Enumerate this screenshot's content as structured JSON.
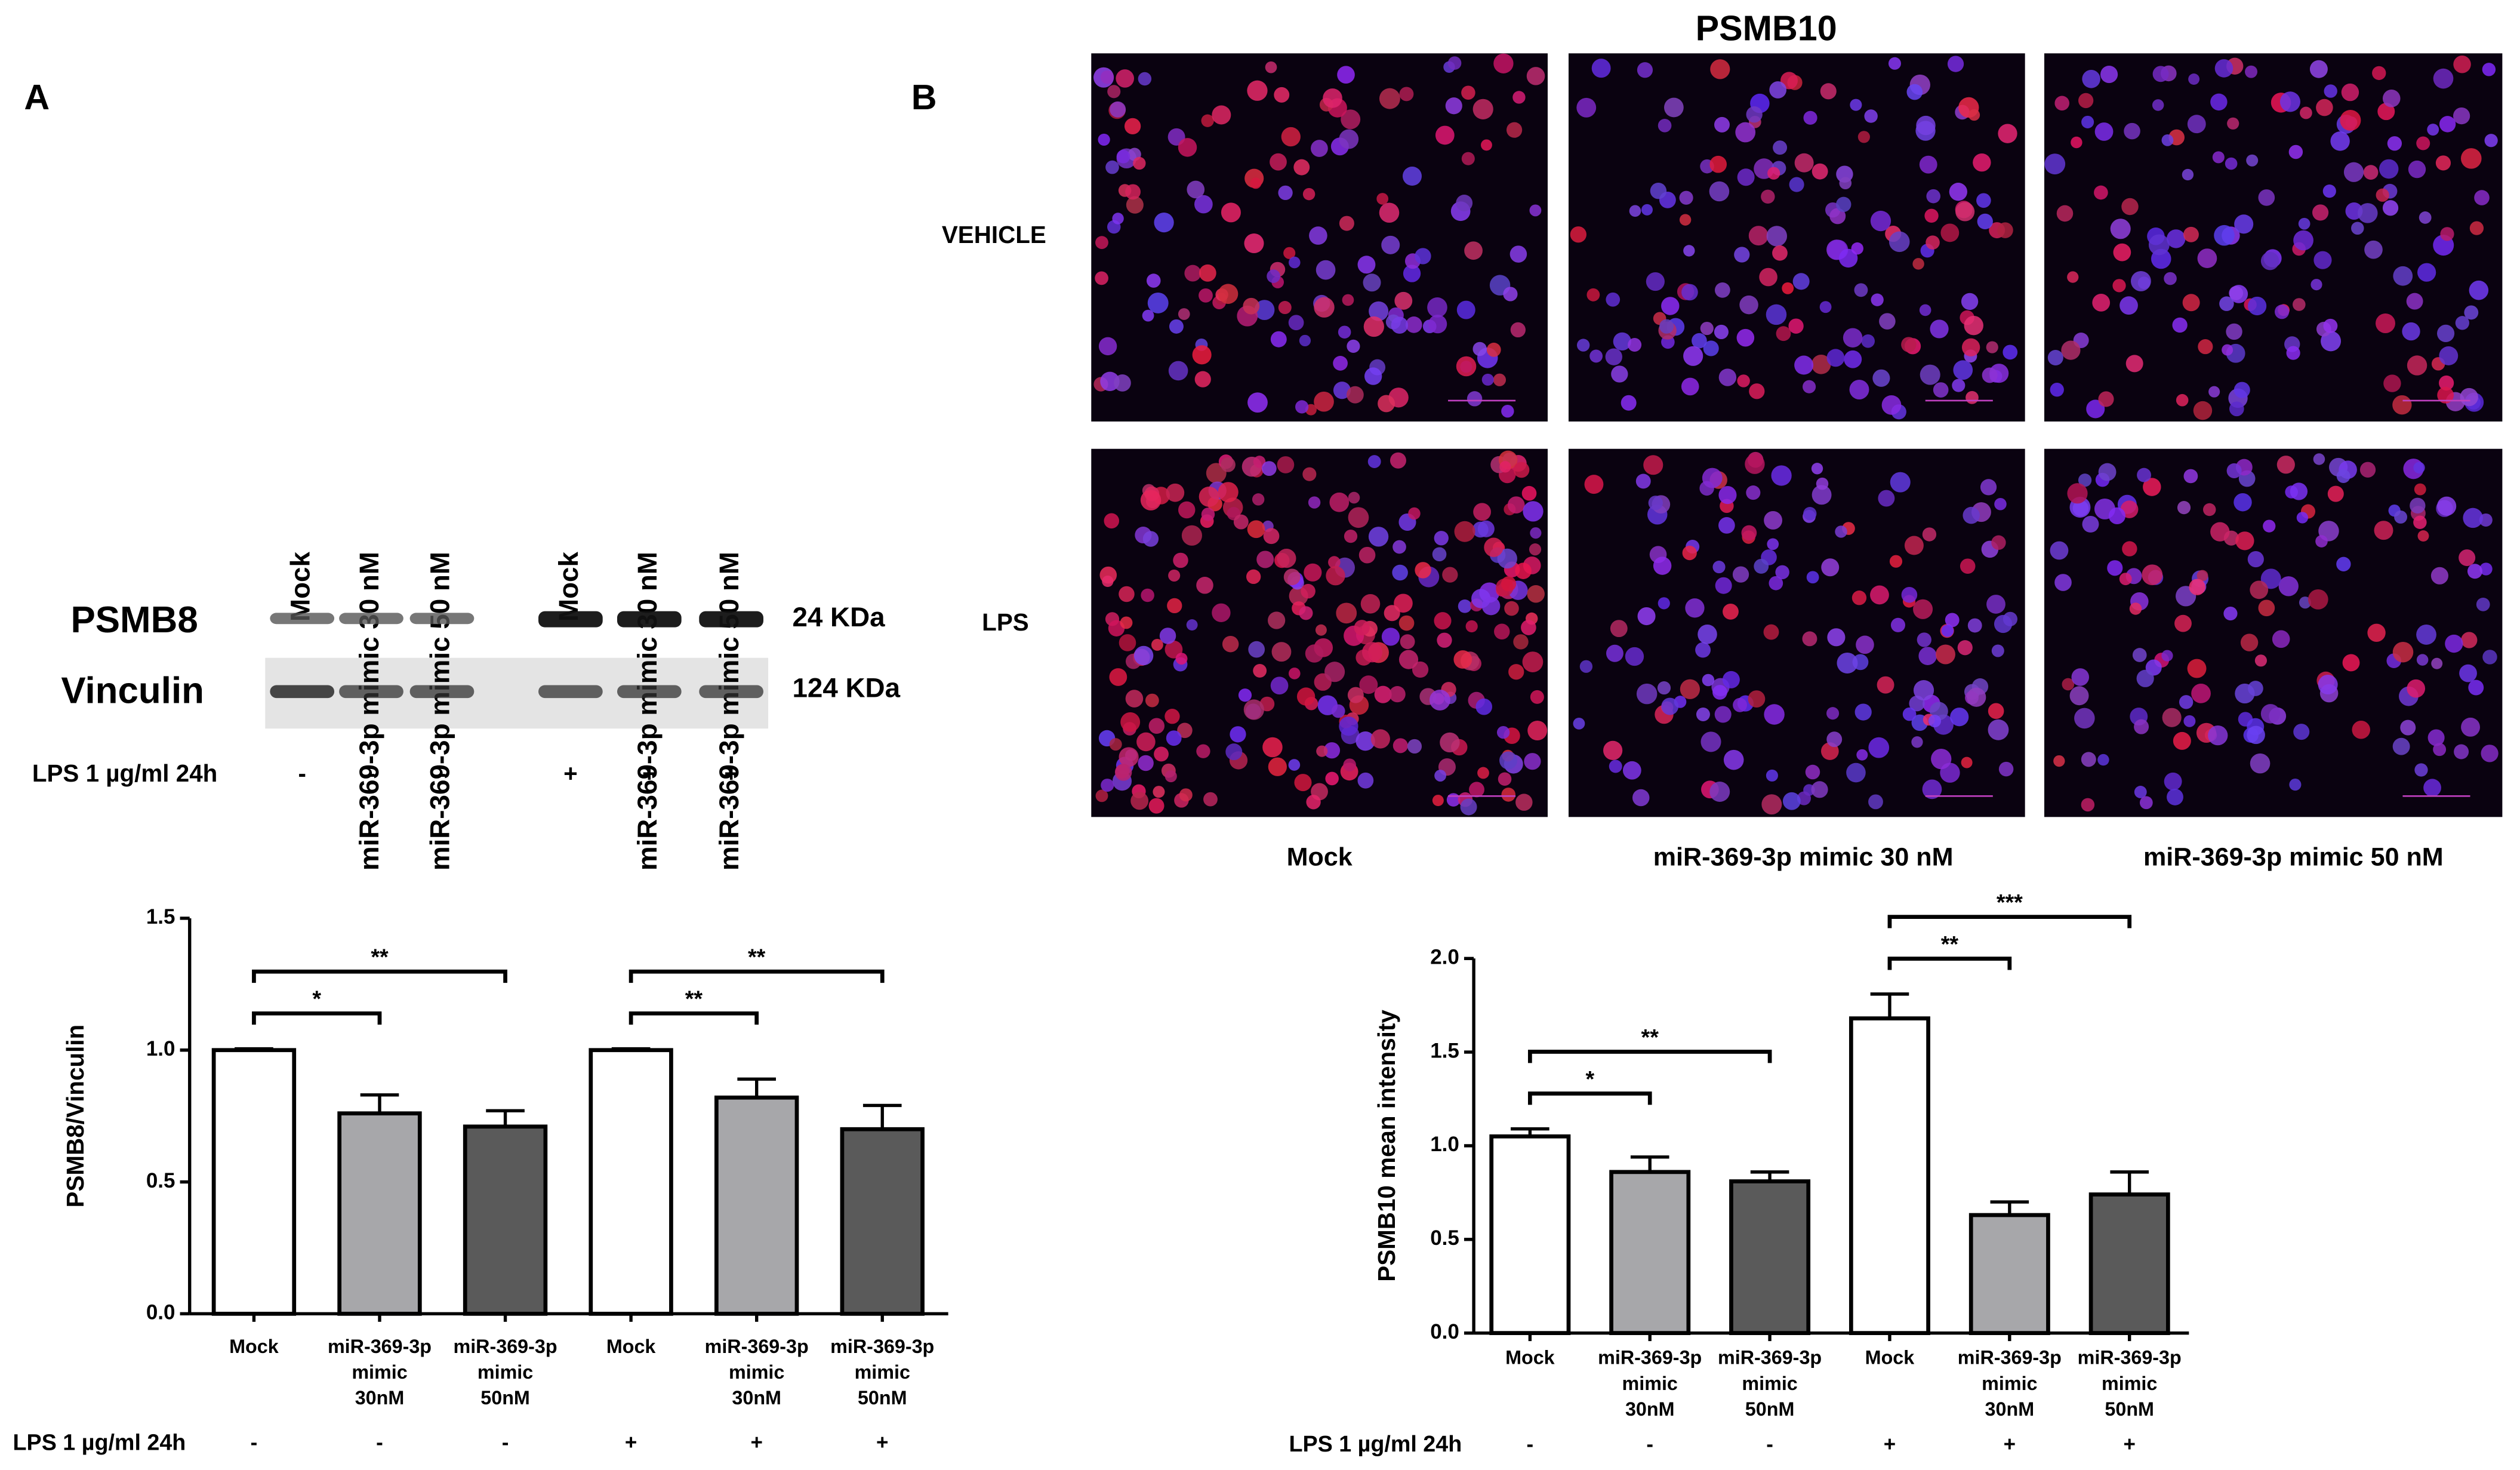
{
  "figure": {
    "panel_a": "A",
    "panel_b": "B"
  },
  "blot": {
    "lanes": [
      "Mock",
      "miR-369-3p mimic 30 nM",
      "miR-369-3p mimic 50 nM",
      "Mock",
      "miR-369-3p mimic 30 nM",
      "miR-369-3p mimic 50 nM"
    ],
    "proteins": [
      "PSMB8",
      "Vinculin"
    ],
    "sizes": [
      "24 KDa",
      "124 KDa"
    ],
    "treatment_label": "LPS 1 µg/ml 24h",
    "treatment": [
      "-",
      "-",
      "-",
      "+",
      "+",
      "+"
    ]
  },
  "micrographs": {
    "title": "PSMB10",
    "rows": [
      "VEHICLE",
      "LPS"
    ],
    "columns": [
      "Mock",
      "miR-369-3p mimic  30 nM",
      "miR-369-3p mimic  50 nM"
    ]
  },
  "chart_data": [
    {
      "type": "bar",
      "ylabel": "PSMB8/Vinculin",
      "categories": [
        "Mock",
        "miR-369-3p mimic 30nM",
        "miR-369-3p mimic 50nM",
        "Mock",
        "miR-369-3p mimic 30nM",
        "miR-369-3p mimic 50nM"
      ],
      "values": [
        1.0,
        0.76,
        0.71,
        1.0,
        0.82,
        0.7
      ],
      "errors": [
        0.005,
        0.07,
        0.06,
        0.005,
        0.07,
        0.09
      ],
      "colors": [
        "#ffffff",
        "#a7a7aa",
        "#5a5a5a",
        "#ffffff",
        "#a7a7aa",
        "#5a5a5a"
      ],
      "ylim": [
        0,
        1.5
      ],
      "yticks": [
        {
          "value": 0,
          "label": "0.0"
        },
        0.5,
        {
          "value": 1,
          "label": "1.0"
        },
        1.5
      ],
      "annotations": [
        {
          "from": 0,
          "to": 1,
          "label": "*"
        },
        {
          "from": 0,
          "to": 2,
          "label": "**"
        },
        {
          "from": 3,
          "to": 4,
          "label": "**"
        },
        {
          "from": 3,
          "to": 5,
          "label": "**"
        }
      ],
      "treatment_label": "LPS 1 µg/ml 24h",
      "treatment": [
        "-",
        "-",
        "-",
        "+",
        "+",
        "+"
      ]
    },
    {
      "type": "bar",
      "ylabel": "PSMB10 mean intensity",
      "categories": [
        "Mock",
        "miR-369-3p mimic 30nM",
        "miR-369-3p mimic 50nM",
        "Mock",
        "miR-369-3p mimic 30nM",
        "miR-369-3p mimic 50nM"
      ],
      "values": [
        1.05,
        0.86,
        0.81,
        1.68,
        0.63,
        0.74
      ],
      "errors": [
        0.04,
        0.08,
        0.05,
        0.13,
        0.07,
        0.12
      ],
      "colors": [
        "#ffffff",
        "#a7a7aa",
        "#5a5a5a",
        "#ffffff",
        "#a7a7aa",
        "#5a5a5a"
      ],
      "ylim": [
        0,
        2
      ],
      "yticks": [
        {
          "value": 0,
          "label": "0.0"
        },
        0.5,
        {
          "value": 1,
          "label": "1.0"
        },
        1.5,
        {
          "value": 2,
          "label": "2.0"
        }
      ],
      "annotations": [
        {
          "from": 0,
          "to": 1,
          "label": "*"
        },
        {
          "from": 0,
          "to": 2,
          "label": "**"
        },
        {
          "from": 3,
          "to": 4,
          "label": "**"
        },
        {
          "from": 3,
          "to": 5,
          "label": "***"
        }
      ],
      "treatment_label": "LPS 1 µg/ml 24h",
      "treatment": [
        "-",
        "-",
        "-",
        "+",
        "+",
        "+"
      ]
    }
  ]
}
